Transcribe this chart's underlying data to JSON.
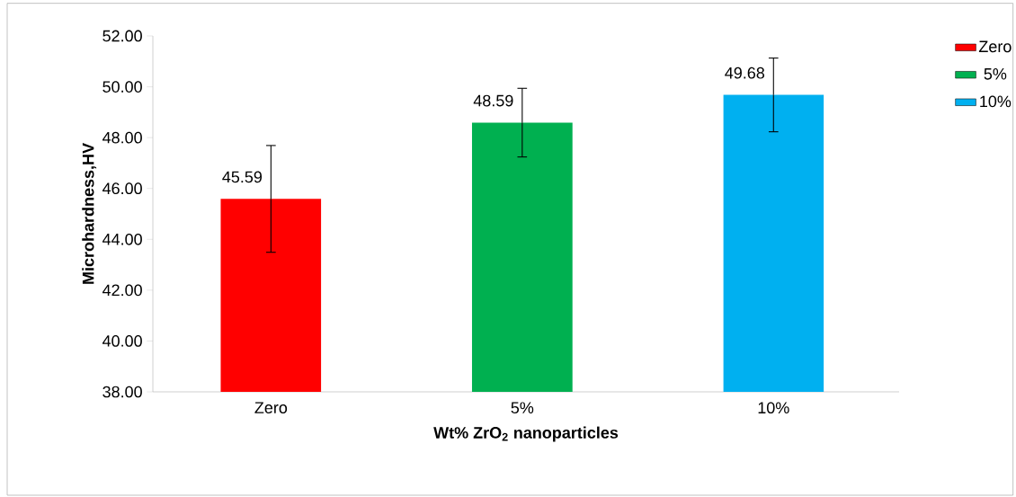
{
  "chart_data": {
    "type": "bar",
    "xlabel": "Wt% ZrO$_{2}$ nanoparticles",
    "ylabel": "Microhardness,HV",
    "categories": [
      "Zero",
      "5%",
      "10%"
    ],
    "series": [
      {
        "name": "Zero",
        "color": "#ff0000",
        "values": [
          45.59,
          null,
          null
        ],
        "errors": [
          2.1,
          null,
          null
        ]
      },
      {
        "name": "5%",
        "color": "#00b050",
        "values": [
          null,
          48.59,
          null
        ],
        "errors": [
          null,
          1.35,
          null
        ]
      },
      {
        "name": "10%",
        "color": "#00b0f0",
        "values": [
          null,
          null,
          49.68
        ],
        "errors": [
          null,
          null,
          1.45
        ]
      }
    ],
    "data_labels": true,
    "ylim": [
      38,
      52
    ],
    "yticks": [
      {
        "value": 38,
        "label": "38.00"
      },
      {
        "value": 40,
        "label": "40.00"
      },
      {
        "value": 42,
        "label": "42.00"
      },
      {
        "value": 44,
        "label": "44.00"
      },
      {
        "value": 46,
        "label": "46.00"
      },
      {
        "value": 48,
        "label": "48.00"
      },
      {
        "value": 50,
        "label": "50.00"
      },
      {
        "value": 52,
        "label": "52.00"
      }
    ],
    "grid": false,
    "legend": "right"
  }
}
